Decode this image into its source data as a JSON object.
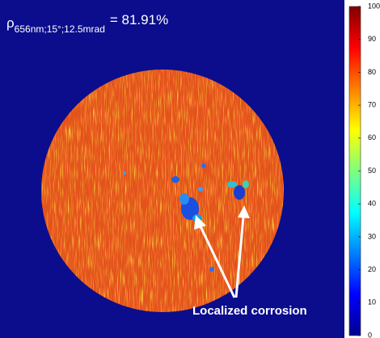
{
  "chart_data": {
    "type": "reflectance-map",
    "title": {
      "symbol": "ρ",
      "subscript": "656nm;15°;12.5mrad",
      "text": "= 81.91%"
    },
    "annotation": "Localized corrosion",
    "colorbar": {
      "lim": [
        0,
        100
      ],
      "ticks": [
        0,
        10,
        20,
        30,
        40,
        50,
        60,
        70,
        80,
        90,
        100
      ],
      "colormap": "jet"
    }
  }
}
